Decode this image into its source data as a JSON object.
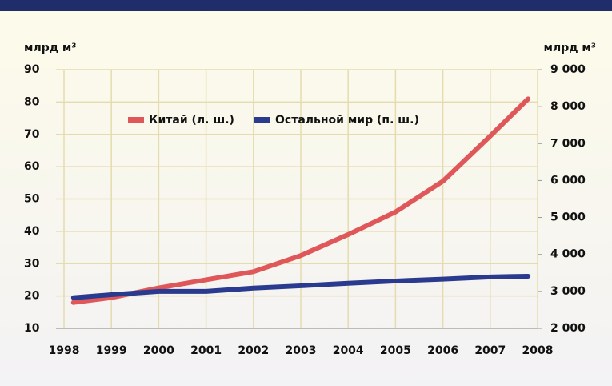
{
  "chart_data": {
    "type": "line",
    "ylabel": "млрд м³",
    "y2label": "млрд м³",
    "x": [
      1998.2,
      1999,
      2000,
      2001,
      2002,
      2003,
      2004,
      2005,
      2006,
      2007,
      2007.8
    ],
    "series": [
      {
        "name": "Китай (л. ш.)",
        "color": "#e0575a",
        "values": [
          18,
          19.5,
          22.5,
          25,
          27.5,
          32.5,
          39,
          46,
          55.5,
          69.5,
          81
        ]
      },
      {
        "name": "Остальной мир (п. ш.)",
        "color": "#2a3b8f",
        "axis": "y2",
        "values": [
          2830,
          2910,
          3000,
          3000,
          3090,
          3150,
          3220,
          3280,
          3330,
          3390,
          3410
        ]
      }
    ],
    "xlim": [
      1998,
      2008
    ],
    "xticks": [
      1998,
      1999,
      2000,
      2001,
      2002,
      2003,
      2004,
      2005,
      2006,
      2007,
      2008
    ],
    "ylim": [
      10,
      90
    ],
    "yticks": [
      10,
      20,
      30,
      40,
      50,
      60,
      70,
      80,
      90
    ],
    "y2lim": [
      2000,
      9000
    ],
    "y2ticks": [
      {
        "value": 2000,
        "label": "2 000"
      },
      {
        "value": 3000,
        "label": "3 000"
      },
      {
        "value": 4000,
        "label": "4 000"
      },
      {
        "value": 5000,
        "label": "5 000"
      },
      {
        "value": 6000,
        "label": "6 000"
      },
      {
        "value": 7000,
        "label": "7 000"
      },
      {
        "value": 8000,
        "label": "8 000"
      },
      {
        "value": 9000,
        "label": "9 000"
      }
    ],
    "grid": true
  }
}
